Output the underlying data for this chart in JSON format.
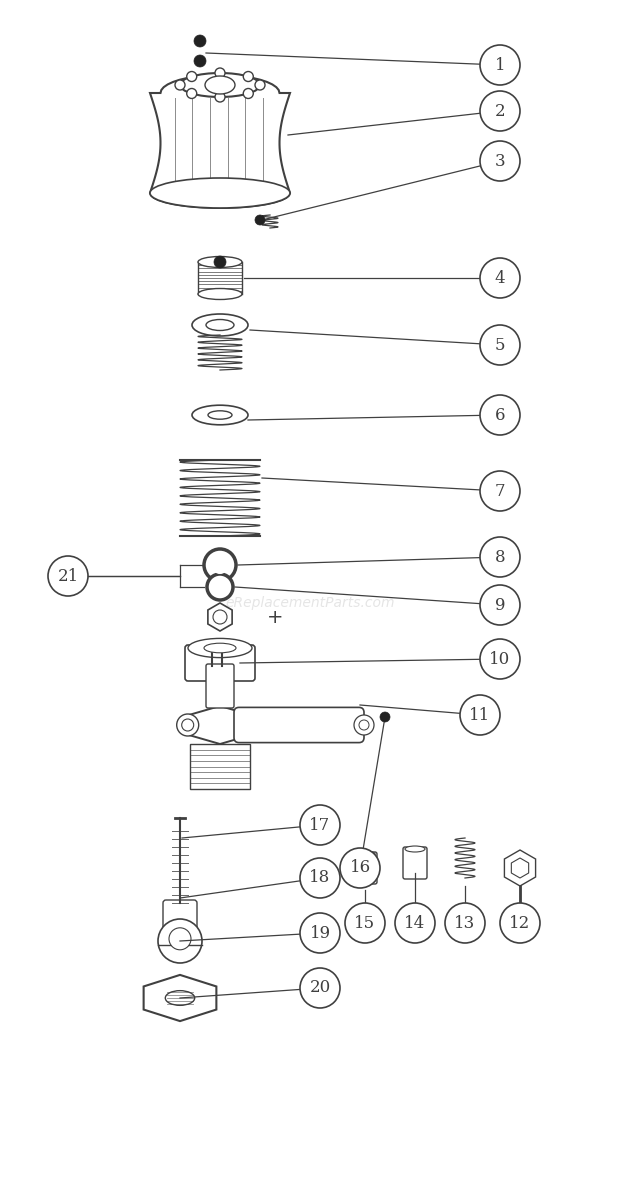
{
  "bg_color": "#ffffff",
  "line_color": "#404040",
  "watermark": "eReplacementParts.com",
  "watermark_color": "#cccccc",
  "figsize": [
    6.2,
    11.83
  ],
  "dpi": 100,
  "xlim": [
    0,
    620
  ],
  "ylim": [
    0,
    1183
  ]
}
